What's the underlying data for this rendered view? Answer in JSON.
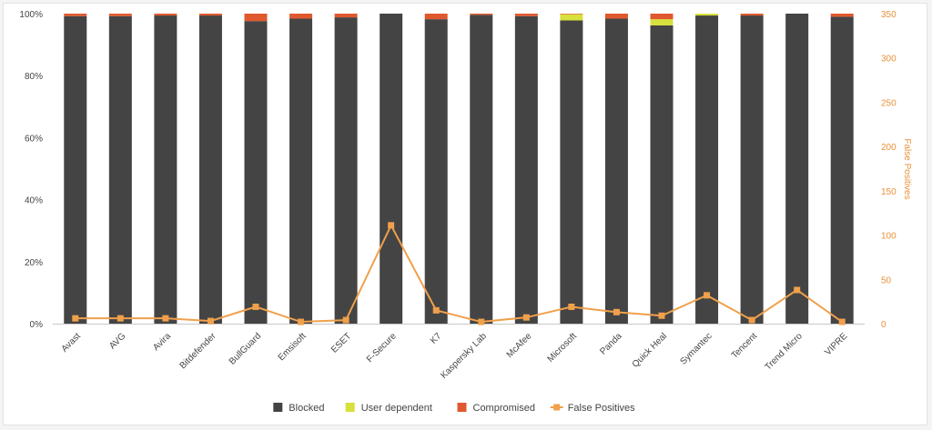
{
  "chart_data": {
    "type": "bar",
    "stacked": true,
    "categories": [
      "Avast",
      "AVG",
      "Avira",
      "Bitdefender",
      "BullGuard",
      "Emsisoft",
      "ESET",
      "F-Secure",
      "K7",
      "Kaspersky Lab",
      "McAfee",
      "Microsoft",
      "Panda",
      "Quick Heal",
      "Symantec",
      "Tencent",
      "Trend Micro",
      "VIPRE"
    ],
    "series": [
      {
        "name": "Blocked",
        "color": "#444444",
        "axis": "left",
        "values": [
          99.2,
          99.2,
          99.4,
          99.4,
          97.6,
          98.4,
          98.8,
          100,
          98.2,
          99.6,
          99.2,
          97.8,
          98.4,
          96.2,
          99.4,
          99.4,
          100,
          99.0
        ]
      },
      {
        "name": "User dependent",
        "color": "#d7e03c",
        "axis": "left",
        "values": [
          0,
          0,
          0,
          0,
          0,
          0,
          0,
          0,
          0,
          0,
          0,
          2.0,
          0,
          2.0,
          0.6,
          0,
          0,
          0
        ]
      },
      {
        "name": "Compromised",
        "color": "#e0582e",
        "axis": "left",
        "values": [
          0.8,
          0.8,
          0.6,
          0.6,
          2.4,
          1.6,
          1.2,
          0,
          1.8,
          0.4,
          0.8,
          0.2,
          1.6,
          1.8,
          0,
          0.6,
          0,
          1.0
        ]
      },
      {
        "name": "False Positives",
        "color": "#f0a04b",
        "type": "line",
        "axis": "right",
        "values": [
          6,
          6,
          6,
          3,
          19,
          2,
          4,
          111,
          15,
          2,
          7,
          19,
          13,
          9,
          32,
          4,
          38,
          2
        ]
      }
    ],
    "y_left": {
      "ticks": [
        "0%",
        "20%",
        "40%",
        "60%",
        "80%",
        "100%"
      ],
      "ylim": [
        0,
        100
      ]
    },
    "y_right": {
      "label": "False Positives",
      "ticks": [
        "0",
        "50",
        "100",
        "150",
        "200",
        "250",
        "300",
        "350"
      ],
      "ylim": [
        0,
        350
      ]
    },
    "grid": false,
    "legend": "bottom-center"
  }
}
